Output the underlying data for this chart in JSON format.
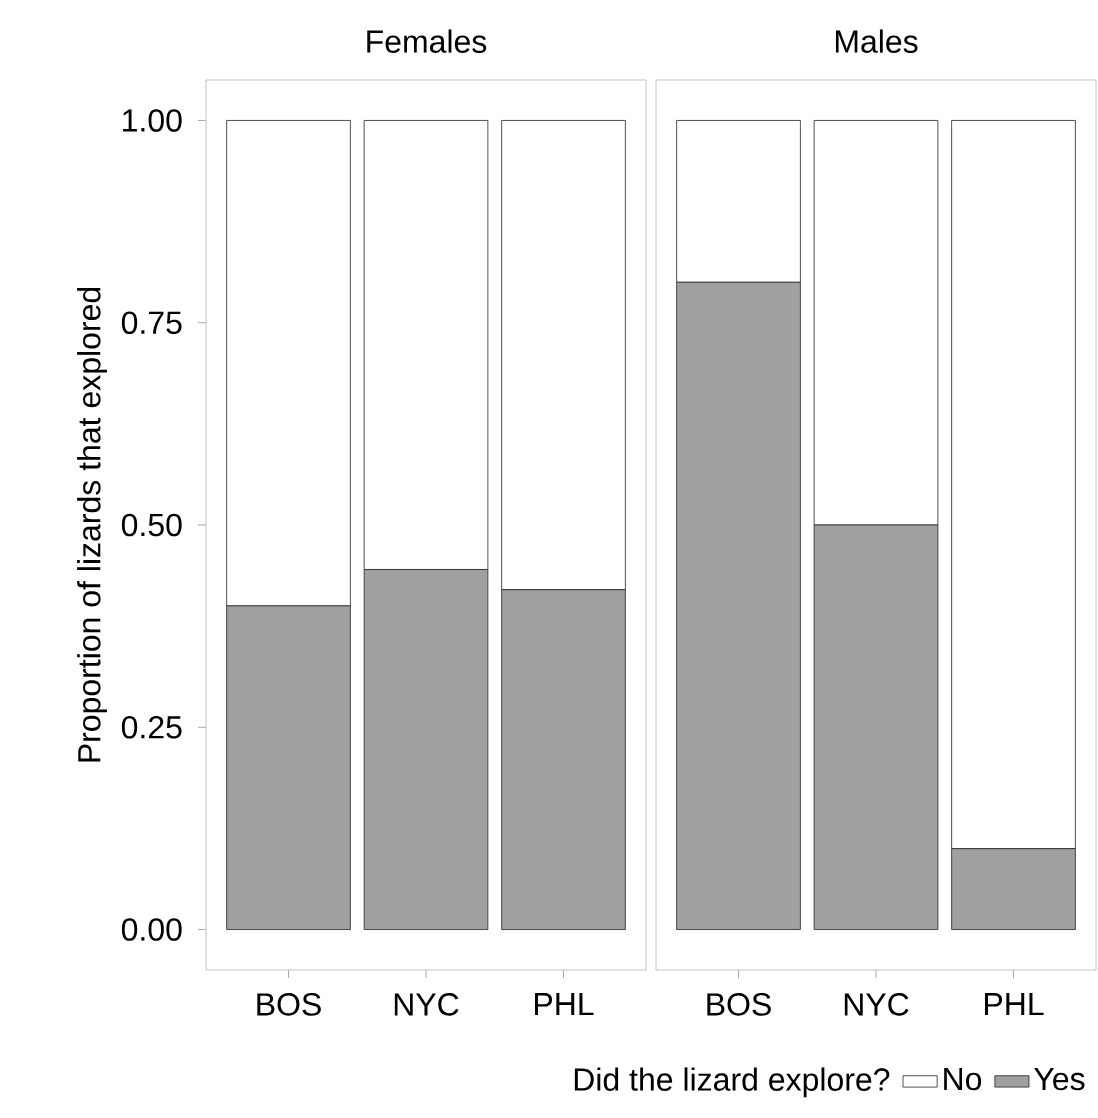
{
  "chart_data": [
    {
      "type": "bar",
      "title": "Females",
      "ylabel": "Proportion of lizards that explored",
      "categories": [
        "BOS",
        "NYC",
        "PHL"
      ],
      "stacked": true,
      "ylim": [
        -0.05,
        1.05
      ],
      "yticks": [
        {
          "value": 0,
          "label": "0.00"
        },
        {
          "value": 0.25,
          "label": "0.25"
        },
        {
          "value": 0.5,
          "label": "0.50"
        },
        {
          "value": 0.75,
          "label": "0.75"
        },
        {
          "value": 1,
          "label": "1.00"
        }
      ],
      "grid": false,
      "series": [
        {
          "color": "#a0a0a0",
          "values": [
            0.4,
            0.445,
            0.42
          ]
        },
        {
          "color": "#ffffff",
          "values": [
            0.6,
            0.555,
            0.58
          ]
        }
      ]
    },
    {
      "type": "bar",
      "title": "Males",
      "categories": [
        "BOS",
        "NYC",
        "PHL"
      ],
      "stacked": true,
      "ylim": [
        -0.05,
        1.05
      ],
      "grid": false,
      "tick_labels": "x",
      "legend": "bottom",
      "legend_title": "Did the lizard explore?",
      "series": [
        {
          "name": "Yes",
          "color": "#a0a0a0",
          "values": [
            0.8,
            0.5,
            0.1
          ]
        },
        {
          "name": "No",
          "color": "#ffffff",
          "values": [
            0.2,
            0.5,
            0.9
          ]
        }
      ]
    }
  ]
}
